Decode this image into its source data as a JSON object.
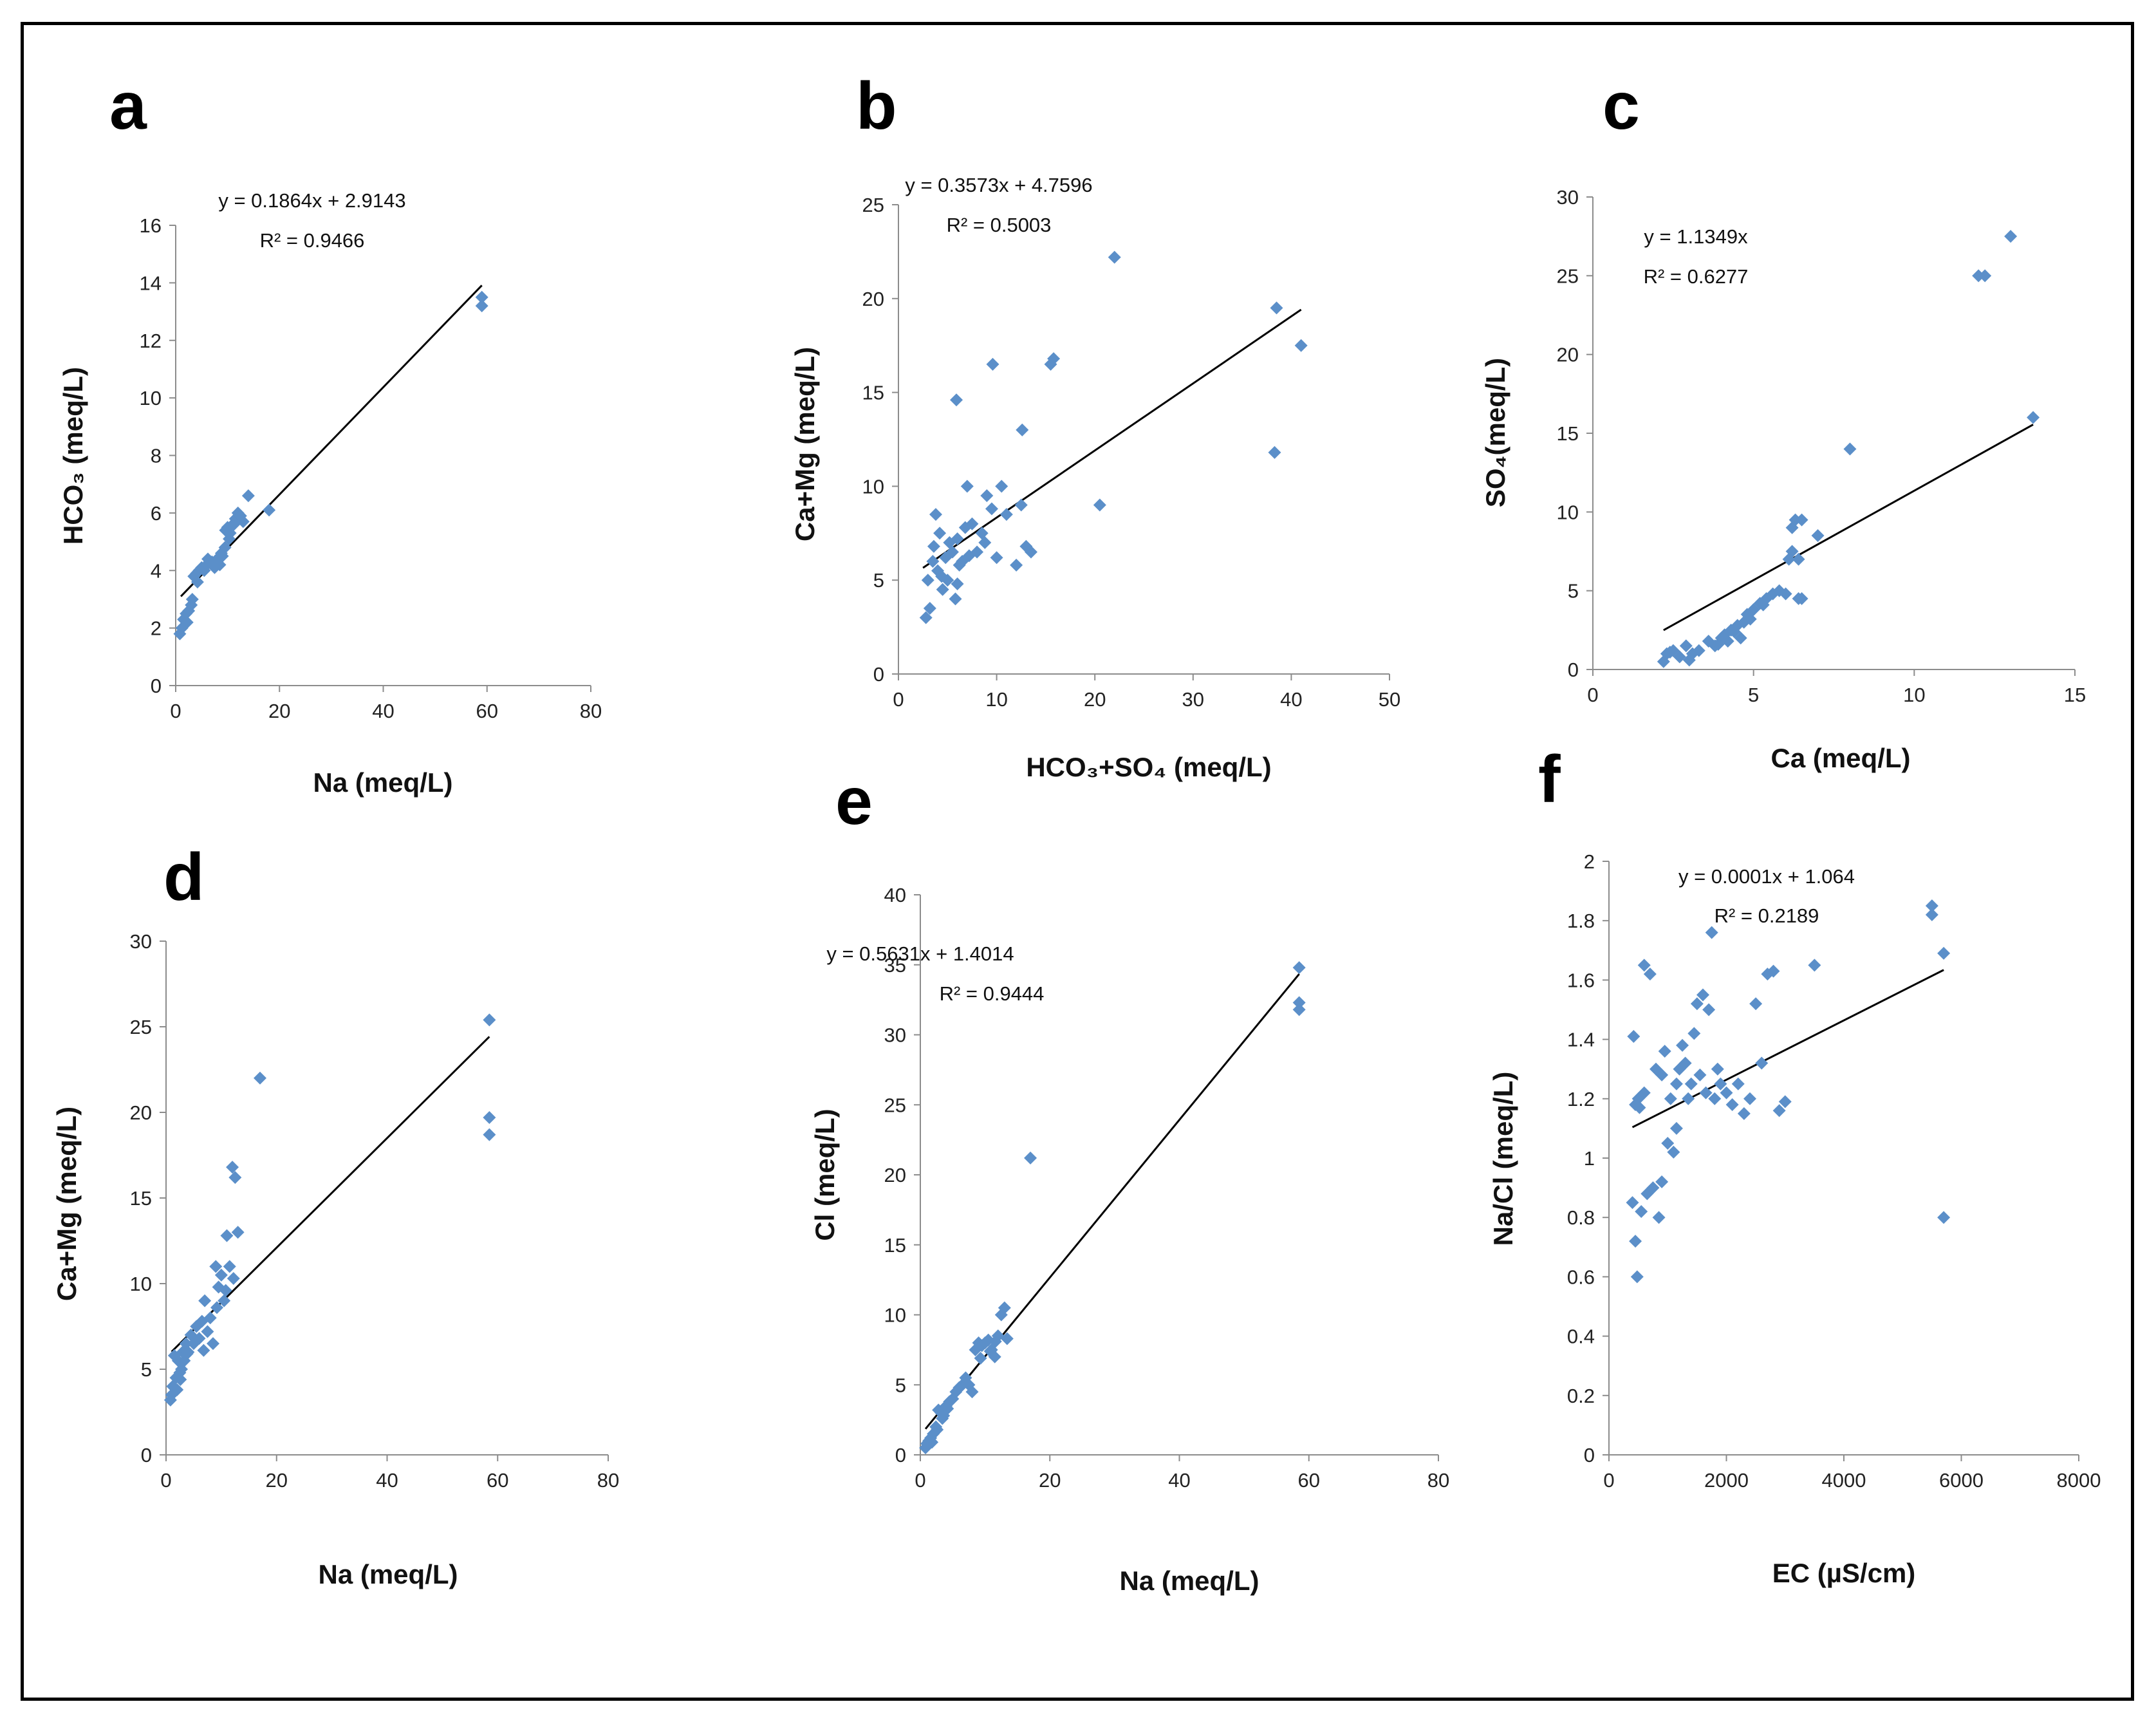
{
  "colors": {
    "marker": "#5b8fc9",
    "trendline": "#000000",
    "axis": "#8c8c8c",
    "frame": "#000000"
  },
  "chart_data": [
    {
      "id": "a",
      "type": "scatter",
      "letter": "a",
      "xlabel": "Na (meq/L)",
      "ylabel": "HCO₃ (meq/L)",
      "xlim": [
        0,
        80
      ],
      "ylim": [
        0,
        16
      ],
      "xticks": [
        0,
        20,
        40,
        60,
        80
      ],
      "yticks": [
        0,
        2,
        4,
        6,
        8,
        10,
        12,
        14,
        16
      ],
      "equation": "y = 0.1864x + 2.9143",
      "r2": "R² = 0.9466",
      "trend": {
        "slope": 0.1864,
        "intercept": 2.9143,
        "x_range": [
          1,
          59
        ]
      },
      "x": [
        0.8,
        1.2,
        1.5,
        2.0,
        2.5,
        3.0,
        3.5,
        4.0,
        4.5,
        5.0,
        5.5,
        6.0,
        6.5,
        7.0,
        7.5,
        8.0,
        8.5,
        9.0,
        9.5,
        10.0,
        10.5,
        11.0,
        11.5,
        12.0,
        12.5,
        13.0,
        14.0,
        18.0,
        59.0,
        59.0,
        3.2,
        2.2,
        4.2,
        6.2,
        8.8,
        10.3,
        9.6,
        11.2
      ],
      "y": [
        1.8,
        2.0,
        2.3,
        2.5,
        2.6,
        2.8,
        3.8,
        3.9,
        4.0,
        4.1,
        4.0,
        4.2,
        4.3,
        4.3,
        4.1,
        4.4,
        4.2,
        4.5,
        4.8,
        5.5,
        5.3,
        5.6,
        5.8,
        6.0,
        5.9,
        5.7,
        6.6,
        6.1,
        13.2,
        13.5,
        3.0,
        2.2,
        3.6,
        4.4,
        4.6,
        5.1,
        5.4,
        5.6
      ]
    },
    {
      "id": "b",
      "type": "scatter",
      "letter": "b",
      "xlabel": "HCO₃+SO₄ (meq/L)",
      "ylabel": "Ca+Mg (meq/L)",
      "xlim": [
        0,
        50
      ],
      "ylim": [
        0,
        25
      ],
      "xticks": [
        0,
        10,
        20,
        30,
        40,
        50
      ],
      "yticks": [
        0,
        5,
        10,
        15,
        20,
        25
      ],
      "equation": "y = 0.3573x + 4.7596",
      "r2": "R² = 0.5003",
      "trend": {
        "slope": 0.3573,
        "intercept": 4.7596,
        "x_range": [
          2.5,
          41
        ]
      },
      "x": [
        2.8,
        3.0,
        3.2,
        3.5,
        3.8,
        4.0,
        4.2,
        4.5,
        4.8,
        5.0,
        5.2,
        5.5,
        5.8,
        6.0,
        6.2,
        6.5,
        6.8,
        7.0,
        7.5,
        8.0,
        8.5,
        9.0,
        9.5,
        10.0,
        10.5,
        11.0,
        12.0,
        12.5,
        13.0,
        13.5,
        15.5,
        15.8,
        20.5,
        22.0,
        38.5,
        38.3,
        41.0,
        5.9,
        9.6,
        12.6,
        3.6,
        4.4,
        7.2,
        8.8,
        6.0
      ],
      "y": [
        3.0,
        5.0,
        3.5,
        6.0,
        8.5,
        5.5,
        7.5,
        4.5,
        6.2,
        5.0,
        7.0,
        6.5,
        4.0,
        7.2,
        5.8,
        6.0,
        7.8,
        10.0,
        8.0,
        6.5,
        7.5,
        9.5,
        8.8,
        6.2,
        10.0,
        8.5,
        5.8,
        9.0,
        6.8,
        6.5,
        16.5,
        16.8,
        9.0,
        22.2,
        19.5,
        11.8,
        17.5,
        14.6,
        16.5,
        13.0,
        6.8,
        5.2,
        6.3,
        7.0,
        4.8
      ]
    },
    {
      "id": "c",
      "type": "scatter",
      "letter": "c",
      "xlabel": "Ca (meq/L)",
      "ylabel": "SO₄(meq/L)",
      "xlim": [
        0,
        15
      ],
      "ylim": [
        0,
        30
      ],
      "xticks": [
        0,
        5,
        10,
        15
      ],
      "yticks": [
        0,
        5,
        10,
        15,
        20,
        25,
        30
      ],
      "equation": "y = 1.1349x",
      "r2": "R² = 0.6277",
      "trend": {
        "slope": 1.1349,
        "intercept": 0,
        "x_range": [
          2.2,
          13.7
        ]
      },
      "x": [
        2.2,
        2.3,
        2.5,
        2.7,
        2.9,
        3.1,
        3.3,
        3.6,
        3.8,
        4.0,
        4.1,
        4.2,
        4.3,
        4.5,
        4.6,
        4.7,
        4.8,
        5.0,
        5.2,
        5.4,
        5.6,
        5.8,
        6.0,
        6.1,
        6.2,
        6.3,
        6.4,
        6.5,
        6.5,
        6.4,
        6.2,
        7.0,
        8.0,
        12.0,
        12.2,
        13.0,
        13.7,
        2.4,
        3.0,
        3.9,
        4.4,
        4.9,
        5.3
      ],
      "y": [
        0.5,
        1.0,
        1.2,
        0.8,
        1.5,
        1.0,
        1.2,
        1.8,
        1.5,
        2.0,
        2.2,
        1.8,
        2.5,
        2.8,
        2.0,
        3.0,
        3.5,
        3.8,
        4.2,
        4.5,
        4.8,
        5.0,
        4.8,
        7.0,
        7.5,
        9.5,
        4.5,
        4.5,
        9.5,
        7.0,
        9.0,
        8.5,
        14.0,
        25.0,
        25.0,
        27.5,
        16.0,
        1.1,
        0.6,
        1.6,
        2.4,
        3.2,
        4.1
      ]
    },
    {
      "id": "d",
      "type": "scatter",
      "letter": "d",
      "xlabel": "Na (meq/L)",
      "ylabel": "Ca+Mg (meq/L)",
      "xlim": [
        0,
        80
      ],
      "ylim": [
        0,
        30
      ],
      "xticks": [
        0,
        20,
        40,
        60,
        80
      ],
      "yticks": [
        0,
        5,
        10,
        15,
        20,
        25,
        30
      ],
      "equation": "",
      "r2": "",
      "trend": {
        "slope": 0.32,
        "intercept": 5.7,
        "x_range": [
          1,
          58.5
        ]
      },
      "x": [
        0.8,
        1.0,
        1.2,
        1.5,
        1.8,
        2.0,
        2.2,
        2.5,
        2.8,
        3.0,
        3.3,
        3.6,
        4.0,
        4.5,
        5.0,
        5.5,
        6.0,
        6.5,
        7.0,
        7.5,
        8.0,
        8.5,
        9.0,
        9.5,
        10.0,
        10.5,
        11.0,
        11.5,
        12.0,
        12.5,
        13.0,
        17.0,
        58.5,
        58.5,
        58.5,
        10.8,
        12.2,
        2.6,
        3.8,
        6.8,
        9.2
      ],
      "y": [
        3.2,
        3.5,
        4.0,
        5.8,
        4.5,
        3.8,
        5.5,
        4.8,
        5.0,
        6.0,
        5.5,
        6.5,
        6.0,
        7.0,
        6.5,
        7.5,
        6.8,
        7.8,
        9.0,
        7.2,
        8.0,
        6.5,
        11.0,
        9.8,
        10.5,
        9.0,
        12.8,
        11.0,
        16.8,
        16.2,
        13.0,
        22.0,
        25.4,
        19.7,
        18.7,
        9.6,
        10.3,
        4.4,
        5.9,
        6.1,
        8.6
      ]
    },
    {
      "id": "e",
      "type": "scatter",
      "letter": "e",
      "xlabel": "Na (meq/L)",
      "ylabel": "Cl (meq/L)",
      "xlim": [
        0,
        80
      ],
      "ylim": [
        0,
        40
      ],
      "xticks": [
        0,
        20,
        40,
        60,
        80
      ],
      "yticks": [
        0,
        5,
        10,
        15,
        20,
        25,
        30,
        35,
        40
      ],
      "equation": "y = 0.5631x + 1.4014",
      "r2": "R² = 0.9444",
      "trend": {
        "slope": 0.5631,
        "intercept": 1.4014,
        "x_range": [
          0.8,
          58.5
        ]
      },
      "x": [
        0.8,
        1.0,
        1.3,
        1.6,
        2.0,
        2.4,
        2.8,
        3.2,
        3.6,
        4.0,
        4.5,
        5.0,
        5.5,
        6.0,
        6.5,
        7.0,
        7.5,
        8.0,
        8.5,
        9.0,
        9.5,
        10.0,
        10.5,
        11.0,
        11.5,
        12.0,
        12.5,
        13.0,
        17.0,
        58.5,
        58.5,
        58.5,
        1.8,
        2.6,
        3.4,
        4.2,
        9.3,
        10.8,
        11.6,
        13.4
      ],
      "y": [
        0.5,
        0.8,
        1.0,
        1.2,
        1.5,
        2.0,
        3.2,
        3.0,
        2.8,
        3.5,
        3.8,
        4.0,
        4.5,
        4.8,
        5.0,
        5.5,
        5.0,
        4.5,
        7.5,
        8.0,
        7.8,
        8.0,
        8.2,
        7.5,
        7.0,
        8.5,
        10.0,
        10.5,
        21.2,
        34.8,
        32.3,
        31.8,
        0.9,
        1.8,
        2.6,
        3.3,
        6.9,
        7.4,
        8.1,
        8.3
      ]
    },
    {
      "id": "f",
      "type": "scatter",
      "letter": "f",
      "xlabel": "EC (µS/cm)",
      "ylabel": "Na/Cl (meq/L)",
      "xlim": [
        0,
        8000
      ],
      "ylim": [
        0,
        2
      ],
      "xticks": [
        0,
        2000,
        4000,
        6000,
        8000
      ],
      "yticks": [
        0,
        0.2,
        0.4,
        0.6,
        0.8,
        1,
        1.2,
        1.4,
        1.6,
        1.8,
        2
      ],
      "equation": "y = 0.0001x + 1.064",
      "r2": "R² = 0.2189",
      "trend": {
        "slope": 0.0001,
        "intercept": 1.064,
        "x_range": [
          400,
          5700
        ]
      },
      "x": [
        400,
        420,
        450,
        480,
        500,
        520,
        550,
        600,
        650,
        700,
        750,
        800,
        850,
        900,
        950,
        1000,
        1050,
        1100,
        1150,
        1200,
        1250,
        1300,
        1350,
        1400,
        1450,
        1500,
        1550,
        1600,
        1650,
        1700,
        1750,
        1800,
        1850,
        1900,
        2000,
        2100,
        2200,
        2300,
        2400,
        2500,
        2600,
        2700,
        2800,
        2900,
        3000,
        3500,
        5500,
        5500,
        5700,
        5700,
        450,
        600,
        900,
        1150
      ],
      "y": [
        0.85,
        1.41,
        0.72,
        0.6,
        1.2,
        1.17,
        0.82,
        1.65,
        0.88,
        1.62,
        0.9,
        1.3,
        0.8,
        1.28,
        1.36,
        1.05,
        1.2,
        1.02,
        1.25,
        1.3,
        1.38,
        1.32,
        1.2,
        1.25,
        1.42,
        1.52,
        1.28,
        1.55,
        1.22,
        1.5,
        1.76,
        1.2,
        1.3,
        1.25,
        1.22,
        1.18,
        1.25,
        1.15,
        1.2,
        1.52,
        1.32,
        1.62,
        1.63,
        1.16,
        1.19,
        1.65,
        1.85,
        1.82,
        1.69,
        0.8,
        1.18,
        1.22,
        0.92,
        1.1
      ]
    }
  ]
}
